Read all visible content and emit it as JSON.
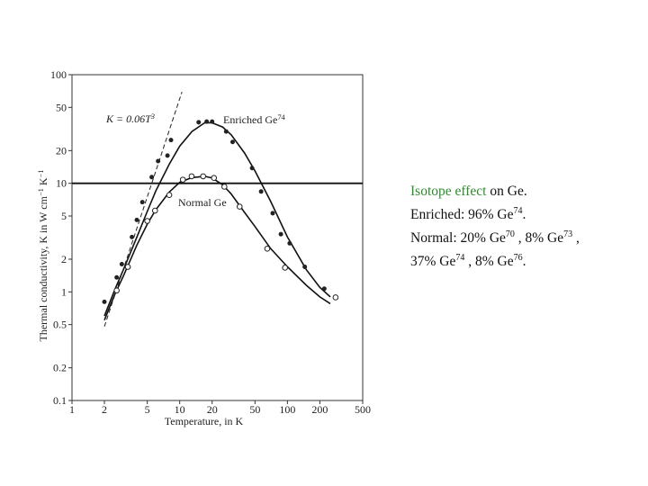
{
  "chart_data": {
    "type": "scatter",
    "xlog": true,
    "ylog": true,
    "xlim": [
      1,
      500
    ],
    "ylim": [
      0.1,
      100
    ],
    "xticks": [
      1,
      2,
      5,
      10,
      20,
      50,
      100,
      200,
      500
    ],
    "yticks": [
      0.1,
      0.2,
      0.5,
      1,
      2,
      5,
      10,
      20,
      50,
      100
    ],
    "reference_line": 10,
    "xlabel": "Temperature, in K",
    "ylabel": [
      {
        "text": "Thermal conductivity, K in W cm"
      },
      {
        "text": "−1",
        "sup": true
      },
      {
        "text": " K"
      },
      {
        "text": "−1",
        "sup": true
      }
    ],
    "series": [
      {
        "name": [
          {
            "text": "Enriched Ge"
          },
          {
            "text": "74",
            "sup": true
          }
        ],
        "marker": "filled",
        "color": "#222",
        "x": [
          2.0,
          2.6,
          2.9,
          3.6,
          4.0,
          4.5,
          5.5,
          6.3,
          7.7,
          8.3,
          15,
          17.8,
          20,
          27,
          31,
          47,
          57,
          73,
          87,
          105,
          145,
          220
        ],
        "values": [
          0.81,
          1.36,
          1.8,
          3.2,
          4.6,
          6.7,
          11.4,
          16,
          18,
          25,
          36.5,
          37,
          37,
          30,
          24,
          13.8,
          8.4,
          5.3,
          3.4,
          2.8,
          1.7,
          1.07
        ]
      },
      {
        "name": [
          {
            "text": "Normal Ge"
          }
        ],
        "marker": "open",
        "color": "#222",
        "x": [
          2.6,
          3.3,
          5.0,
          5.9,
          8.0,
          10.7,
          12.9,
          16.5,
          20.8,
          26,
          36,
          65,
          95,
          280
        ],
        "values": [
          1.03,
          1.7,
          4.5,
          5.6,
          7.8,
          10.8,
          11.6,
          11.6,
          11.2,
          9.3,
          6.1,
          2.5,
          1.67,
          0.89
        ]
      }
    ],
    "curves": [
      {
        "x": [
          2,
          2.5,
          3,
          4,
          5,
          6,
          8,
          10,
          13,
          17,
          20,
          25,
          30,
          40,
          50,
          70,
          100,
          150,
          200,
          250
        ],
        "values": [
          0.6,
          1.05,
          1.6,
          3.2,
          5.5,
          8.5,
          15,
          22,
          30,
          36,
          36,
          33,
          28,
          19,
          13,
          6.8,
          3.2,
          1.6,
          1.1,
          0.9
        ]
      },
      {
        "x": [
          2,
          2.5,
          3,
          4,
          5,
          6,
          8,
          10,
          13,
          17,
          20,
          25,
          30,
          40,
          50,
          70,
          100,
          150,
          200,
          250
        ],
        "values": [
          0.55,
          0.95,
          1.4,
          2.7,
          4.2,
          5.7,
          8.3,
          10.2,
          11.3,
          11.6,
          11.2,
          9.7,
          8.0,
          5.4,
          4.0,
          2.5,
          1.7,
          1.15,
          0.9,
          0.78
        ]
      }
    ],
    "dashed_line": {
      "label": [
        {
          "text": "K = 0.06T"
        },
        {
          "text": "3",
          "sup": true
        }
      ],
      "x": [
        2,
        10.5
      ],
      "values": [
        0.48,
        69.5
      ]
    }
  },
  "note": [
    [
      {
        "text": "Isotope effect",
        "color": "#2e8b2e"
      },
      {
        "text": " on Ge."
      }
    ],
    [
      {
        "text": "Enriched: 96% Ge"
      },
      {
        "text": "74",
        "sup": true
      },
      {
        "text": "."
      }
    ],
    [
      {
        "text": "Normal:  20% Ge"
      },
      {
        "text": "70",
        "sup": true
      },
      {
        "text": " , 8% Ge"
      },
      {
        "text": "73",
        "sup": true
      },
      {
        "text": " ,"
      }
    ],
    [
      {
        "text": "37% Ge"
      },
      {
        "text": "74",
        "sup": true
      },
      {
        "text": " , 8% Ge"
      },
      {
        "text": "76",
        "sup": true
      },
      {
        "text": "."
      }
    ]
  ]
}
